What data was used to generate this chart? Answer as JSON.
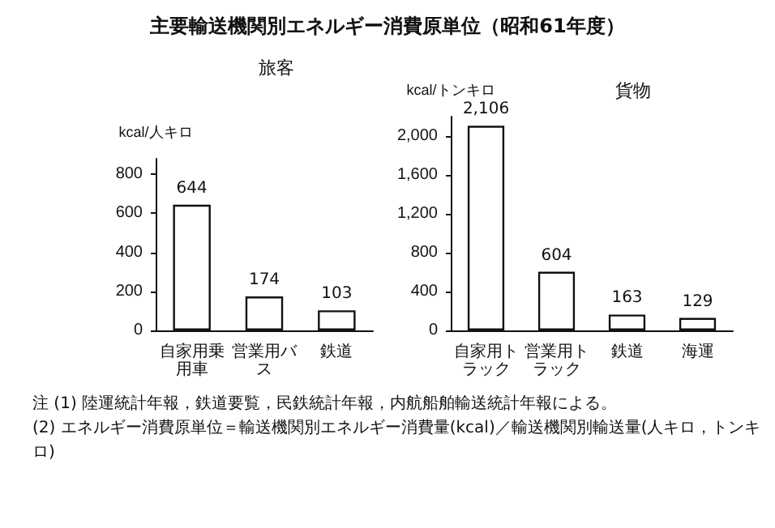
{
  "chart_data": [
    {
      "type": "bar",
      "title": "主要輸送機関別エネルギー消費原単位（昭和61年度）",
      "subtitle": "旅客",
      "ylabel": "kcal/人キロ",
      "categories": [
        "自家用乗用車",
        "営業用バス",
        "鉄道"
      ],
      "values": [
        644,
        174,
        103
      ],
      "color": "#ffffff",
      "ylim": [
        0,
        880
      ],
      "yticks": [
        0,
        200,
        400,
        600,
        800
      ],
      "grid": false,
      "data_labels": true
    },
    {
      "type": "bar",
      "subtitle": "貨物",
      "ylabel": "kcal/トンキロ",
      "categories": [
        "自家用トラック",
        "営業用トラック",
        "鉄道",
        "海運"
      ],
      "values": [
        2106,
        604,
        163,
        129
      ],
      "value_labels": [
        "2,106",
        "604",
        "163",
        "129"
      ],
      "color": "#ffffff",
      "ylim": [
        0,
        2200
      ],
      "yticks": [
        0,
        {
          "value": 400,
          "label": "400"
        },
        {
          "value": 800,
          "label": "800"
        },
        {
          "value": 1200,
          "label": "1,200"
        },
        {
          "value": 1600,
          "label": "1,600"
        },
        {
          "value": 2000,
          "label": "2,000"
        }
      ],
      "grid": false,
      "annotations": [
        "注 (1) 陸運統計年報，鉄道要覧，民鉄統計年報，内航船舶輸送統計年報による。",
        "(2) エネルギー消費原単位＝輸送機関別エネルギー消費量(kcal)／輸送機関別輸送量(人キロ，トンキロ)"
      ]
    }
  ]
}
